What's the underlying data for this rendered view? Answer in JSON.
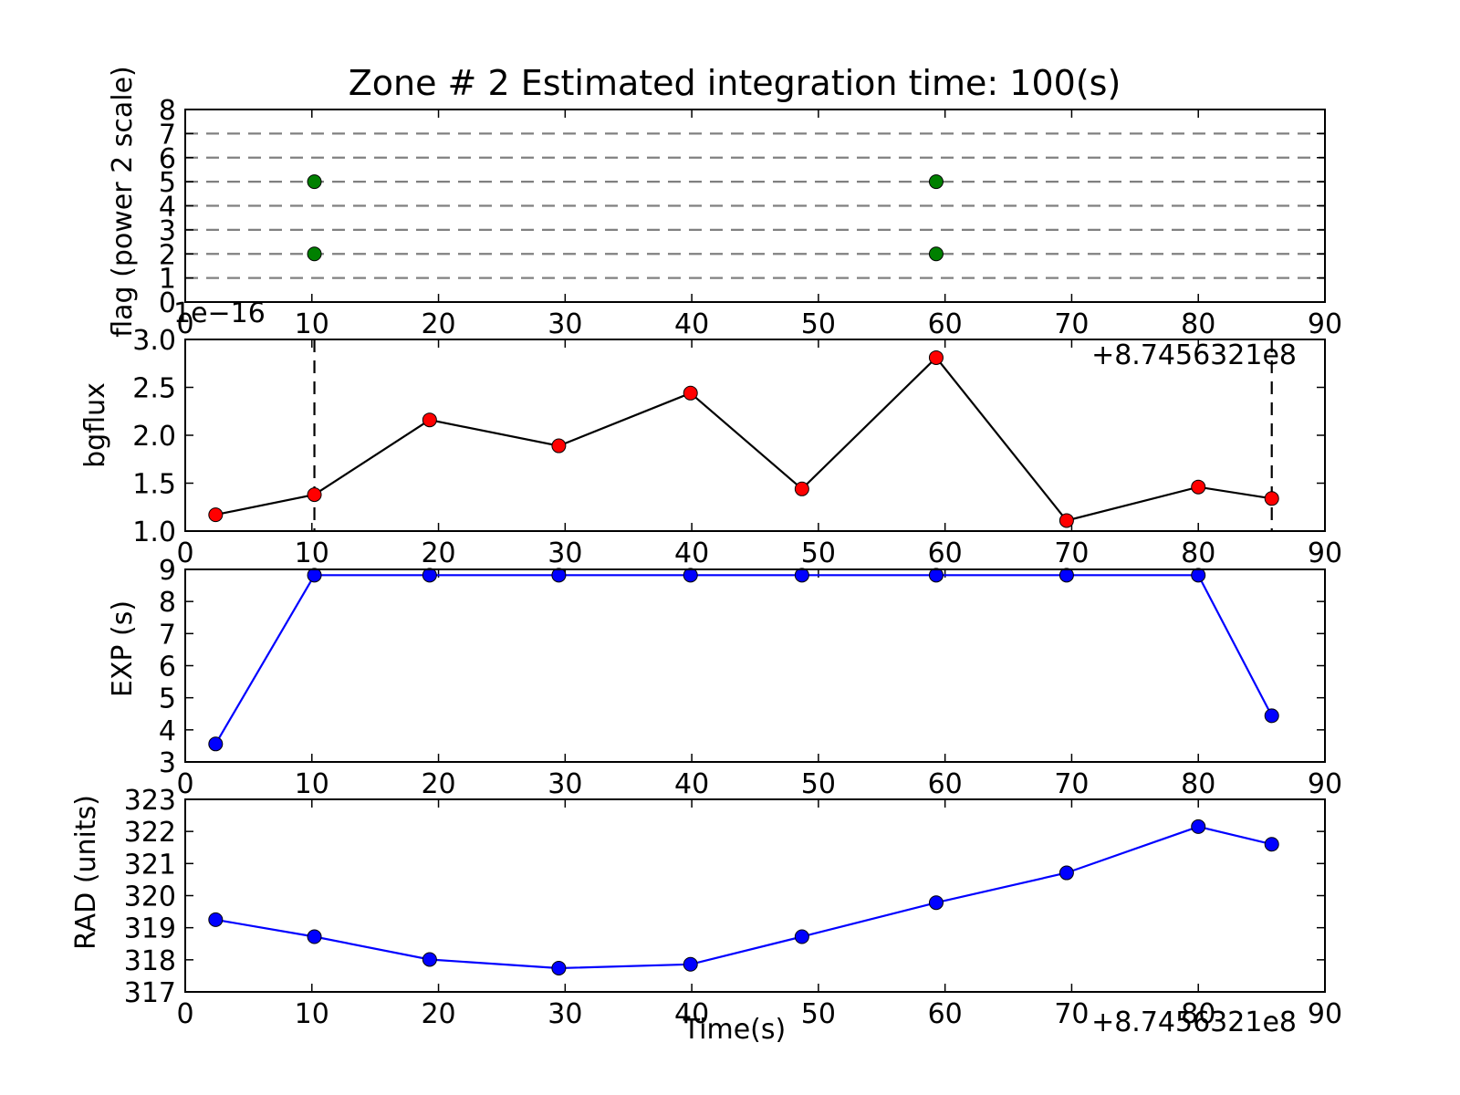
{
  "title": "Zone # 2 Estimated integration time: 100(s)",
  "colors": {
    "flag_marker": "#008000",
    "bgflux_marker": "#ff0000",
    "bgflux_line": "#000000",
    "blue": "#0000ff",
    "grid_dash": "#808080"
  },
  "chart_data": [
    {
      "type": "scatter",
      "id": "flag",
      "ylabel": "flag (power 2 scale)",
      "xlim": [
        0,
        90
      ],
      "ylim": [
        0,
        8
      ],
      "xticks": [
        "0",
        "10",
        "20",
        "30",
        "40",
        "50",
        "60",
        "70",
        "80",
        "90"
      ],
      "yticks": [
        "0",
        "1",
        "2",
        "3",
        "4",
        "5",
        "6",
        "7",
        "8"
      ],
      "hlines": [
        1,
        2,
        3,
        4,
        5,
        6,
        7
      ],
      "grid": "horizontal dashed lines at y=1..7",
      "points": [
        {
          "x": 10.2,
          "y": 5
        },
        {
          "x": 10.2,
          "y": 2
        },
        {
          "x": 59.3,
          "y": 5
        },
        {
          "x": 59.3,
          "y": 2
        }
      ]
    },
    {
      "type": "line",
      "id": "bgflux",
      "ylabel": "bgflux",
      "scale_label": "1e−16",
      "offset_label": "+8.7456321e8",
      "xlim": [
        0,
        90
      ],
      "ylim": [
        1.0,
        3.0
      ],
      "xticks": [
        "0",
        "10",
        "20",
        "30",
        "40",
        "50",
        "60",
        "70",
        "80",
        "90"
      ],
      "yticks": [
        "1.0",
        "1.5",
        "2.0",
        "2.5",
        "3.0"
      ],
      "vlines": [
        10.2,
        85.8
      ],
      "x": [
        2.4,
        10.2,
        19.3,
        29.5,
        39.9,
        48.7,
        59.3,
        69.6,
        80.0,
        85.8
      ],
      "y": [
        1.17,
        1.38,
        2.16,
        1.89,
        2.44,
        1.44,
        2.81,
        1.11,
        1.46,
        1.34
      ]
    },
    {
      "type": "line",
      "id": "exp",
      "ylabel": "EXP (s)",
      "xlim": [
        0,
        90
      ],
      "ylim": [
        3,
        9
      ],
      "xticks": [
        "0",
        "10",
        "20",
        "30",
        "40",
        "50",
        "60",
        "70",
        "80",
        "90"
      ],
      "yticks": [
        "3",
        "4",
        "5",
        "6",
        "7",
        "8",
        "9"
      ],
      "x": [
        2.4,
        10.2,
        19.3,
        29.5,
        39.9,
        48.7,
        59.3,
        69.6,
        80.0,
        85.8
      ],
      "y": [
        3.56,
        8.82,
        8.82,
        8.82,
        8.82,
        8.82,
        8.82,
        8.82,
        8.82,
        4.44
      ]
    },
    {
      "type": "line",
      "id": "rad",
      "ylabel": "RAD (units)",
      "xlabel": "Time(s)",
      "offset_label": "+8.7456321e8",
      "xlim": [
        0,
        90
      ],
      "ylim": [
        317,
        323
      ],
      "xticks": [
        "0",
        "10",
        "20",
        "30",
        "40",
        "50",
        "60",
        "70",
        "80",
        "90"
      ],
      "yticks": [
        "317",
        "318",
        "319",
        "320",
        "321",
        "322",
        "323"
      ],
      "x": [
        2.4,
        10.2,
        19.3,
        29.5,
        39.9,
        48.7,
        59.3,
        69.6,
        80.0,
        85.8
      ],
      "y": [
        319.25,
        318.72,
        318.01,
        317.74,
        317.86,
        318.72,
        319.78,
        320.71,
        322.15,
        321.6
      ]
    }
  ]
}
